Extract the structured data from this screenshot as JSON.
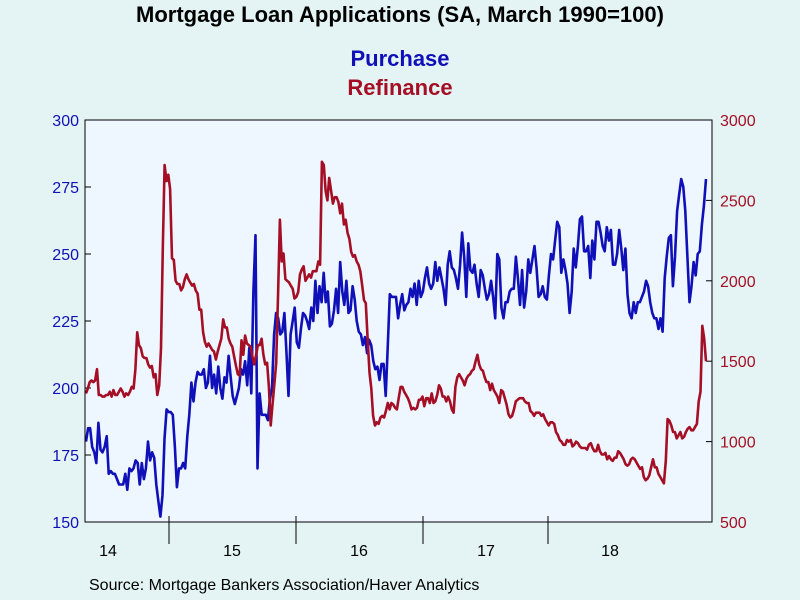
{
  "chart_data": {
    "type": "line",
    "title": "Mortgage Loan Applications (SA, March 1990=100)",
    "source": "Source:  Mortgage Bankers Association/Haver Analytics",
    "x_ticks": [
      "14",
      "15",
      "16",
      "17",
      "18"
    ],
    "left_axis": {
      "ylim": [
        150,
        300
      ],
      "ticks": [
        150,
        175,
        200,
        225,
        250,
        275,
        300
      ],
      "color": "#1010b8"
    },
    "right_axis": {
      "ylim": [
        500,
        3000
      ],
      "ticks": [
        500,
        1000,
        1500,
        2000,
        2500,
        3000
      ],
      "color": "#a50f25"
    },
    "series": [
      {
        "name": "Purchase",
        "axis": "left",
        "color": "#1010b8",
        "values": [
          180,
          185,
          185,
          178,
          176,
          172,
          187,
          177,
          176,
          178,
          182,
          168,
          169,
          168,
          168,
          166,
          164,
          164,
          164,
          168,
          162,
          170,
          169,
          170,
          173,
          172,
          164,
          172,
          166,
          170,
          180,
          173,
          176,
          174,
          164,
          158,
          152,
          160,
          181,
          192,
          191,
          191,
          190,
          178,
          163,
          170,
          170,
          172,
          170,
          182,
          190,
          202,
          195,
          202,
          206,
          205,
          205,
          207,
          200,
          202,
          212,
          200,
          205,
          198,
          208,
          200,
          196,
          204,
          202,
          212,
          204,
          197,
          194,
          197,
          200,
          207,
          205,
          210,
          201,
          215,
          198,
          236,
          257,
          170,
          198,
          190,
          190,
          190,
          188,
          196,
          200,
          220,
          228,
          226,
          220,
          221,
          228,
          213,
          197,
          220,
          225,
          230,
          217,
          215,
          222,
          228,
          227,
          225,
          222,
          230,
          225,
          240,
          228,
          238,
          232,
          243,
          232,
          236,
          223,
          224,
          229,
          237,
          228,
          247,
          236,
          231,
          240,
          228,
          229,
          238,
          233,
          225,
          221,
          220,
          216,
          219,
          213,
          218,
          216,
          210,
          207,
          208,
          203,
          209,
          209,
          197,
          215,
          235,
          234,
          234,
          234,
          226,
          231,
          235,
          229,
          231,
          232,
          237,
          234,
          239,
          231,
          240,
          234,
          236,
          241,
          245,
          239,
          237,
          239,
          247,
          240,
          245,
          241,
          237,
          231,
          246,
          251,
          245,
          244,
          241,
          237,
          246,
          258,
          249,
          234,
          254,
          244,
          243,
          246,
          239,
          234,
          244,
          242,
          237,
          233,
          235,
          240,
          234,
          226,
          250,
          248,
          230,
          226,
          232,
          232,
          236,
          237,
          237,
          249,
          241,
          231,
          244,
          230,
          236,
          248,
          243,
          248,
          253,
          245,
          234,
          235,
          238,
          234,
          233,
          242,
          250,
          248,
          255,
          262,
          260,
          243,
          248,
          244,
          239,
          228,
          236,
          252,
          245,
          253,
          263,
          264,
          251,
          251,
          253,
          241,
          255,
          248,
          262,
          262,
          258,
          253,
          251,
          260,
          255,
          259,
          246,
          246,
          250,
          259,
          252,
          244,
          252,
          235,
          228,
          226,
          232,
          228,
          232,
          232,
          234,
          236,
          240,
          238,
          232,
          228,
          226,
          226,
          222,
          226,
          221,
          241,
          249,
          256,
          257,
          238,
          249,
          266,
          272,
          278,
          275,
          266,
          249,
          232,
          238,
          247,
          242,
          250,
          251,
          261,
          268,
          278
        ],
        "label_y": [
          58
        ]
      },
      {
        "name": "Refinance",
        "axis": "right",
        "color": "#a50f25",
        "values": [
          1300,
          1330,
          1370,
          1380,
          1370,
          1380,
          1450,
          1290,
          1290,
          1280,
          1280,
          1290,
          1290,
          1310,
          1280,
          1320,
          1290,
          1290,
          1310,
          1330,
          1310,
          1280,
          1300,
          1290,
          1310,
          1340,
          1330,
          1450,
          1680,
          1600,
          1580,
          1530,
          1520,
          1520,
          1480,
          1460,
          1470,
          1400,
          1420,
          1290,
          1350,
          1580,
          2200,
          2720,
          2620,
          2660,
          2570,
          2140,
          2130,
          2000,
          1980,
          1980,
          1940,
          1960,
          2010,
          2040,
          2010,
          1990,
          1970,
          1980,
          1940,
          1920,
          1820,
          1820,
          1680,
          1620,
          1590,
          1610,
          1590,
          1570,
          1560,
          1510,
          1560,
          1600,
          1640,
          1760,
          1710,
          1710,
          1640,
          1610,
          1590,
          1530,
          1470,
          1420,
          1410,
          1630,
          1540,
          1660,
          1610,
          1600,
          1590,
          1530,
          1480,
          1540,
          1600,
          1600,
          1640,
          1540,
          1480,
          1490,
          1340,
          1100,
          1230,
          1360,
          1490,
          1900,
          2380,
          2120,
          2170,
          2010,
          2000,
          1990,
          1970,
          1950,
          1890,
          1900,
          1930,
          2040,
          2070,
          2090,
          2000,
          2020,
          2040,
          2020,
          2060,
          2060,
          2060,
          2120,
          2100,
          2740,
          2720,
          2560,
          2500,
          2640,
          2560,
          2480,
          2520,
          2520,
          2490,
          2420,
          2480,
          2350,
          2380,
          2300,
          2260,
          2180,
          2150,
          2160,
          2120,
          2100,
          2060,
          1970,
          1880,
          1860,
          1630,
          1430,
          1330,
          1160,
          1100,
          1120,
          1110,
          1150,
          1160,
          1150,
          1190,
          1240,
          1200,
          1240,
          1230,
          1210,
          1200,
          1270,
          1340,
          1340,
          1310,
          1290,
          1270,
          1240,
          1200,
          1210,
          1200,
          1210,
          1260,
          1260,
          1280,
          1220,
          1270,
          1270,
          1240,
          1300,
          1240,
          1250,
          1290,
          1350,
          1330,
          1280,
          1280,
          1250,
          1280,
          1250,
          1200,
          1180,
          1340,
          1400,
          1420,
          1400,
          1380,
          1350,
          1390,
          1410,
          1420,
          1440,
          1450,
          1500,
          1540,
          1480,
          1450,
          1440,
          1400,
          1370,
          1370,
          1320,
          1360,
          1320,
          1300,
          1280,
          1240,
          1320,
          1310,
          1270,
          1230,
          1170,
          1150,
          1160,
          1200,
          1250,
          1260,
          1270,
          1270,
          1270,
          1250,
          1240,
          1240,
          1190,
          1180,
          1160,
          1180,
          1180,
          1180,
          1160,
          1170,
          1140,
          1120,
          1100,
          1120,
          1120,
          1110,
          1060,
          1040,
          1010,
          1000,
          980,
          980,
          1010,
          1000,
          1010,
          970,
          980,
          1000,
          990,
          970,
          960,
          960,
          960,
          950,
          980,
          990,
          960,
          940,
          940,
          980,
          940,
          920,
          920,
          930,
          890,
          910,
          890,
          880,
          900,
          900,
          940,
          930,
          910,
          890,
          860,
          850,
          860,
          890,
          900,
          890,
          870,
          850,
          830,
          840,
          780,
          760,
          770,
          790,
          840,
          890,
          840,
          840,
          800,
          780,
          760,
          740,
          880,
          1140,
          1130,
          1100,
          1060,
          1060,
          1020,
          1040,
          1060,
          1020,
          1030,
          1060,
          1080,
          1090,
          1070,
          1070,
          1090,
          1110,
          1250,
          1310,
          1720,
          1640,
          1500
        ]
      }
    ]
  }
}
